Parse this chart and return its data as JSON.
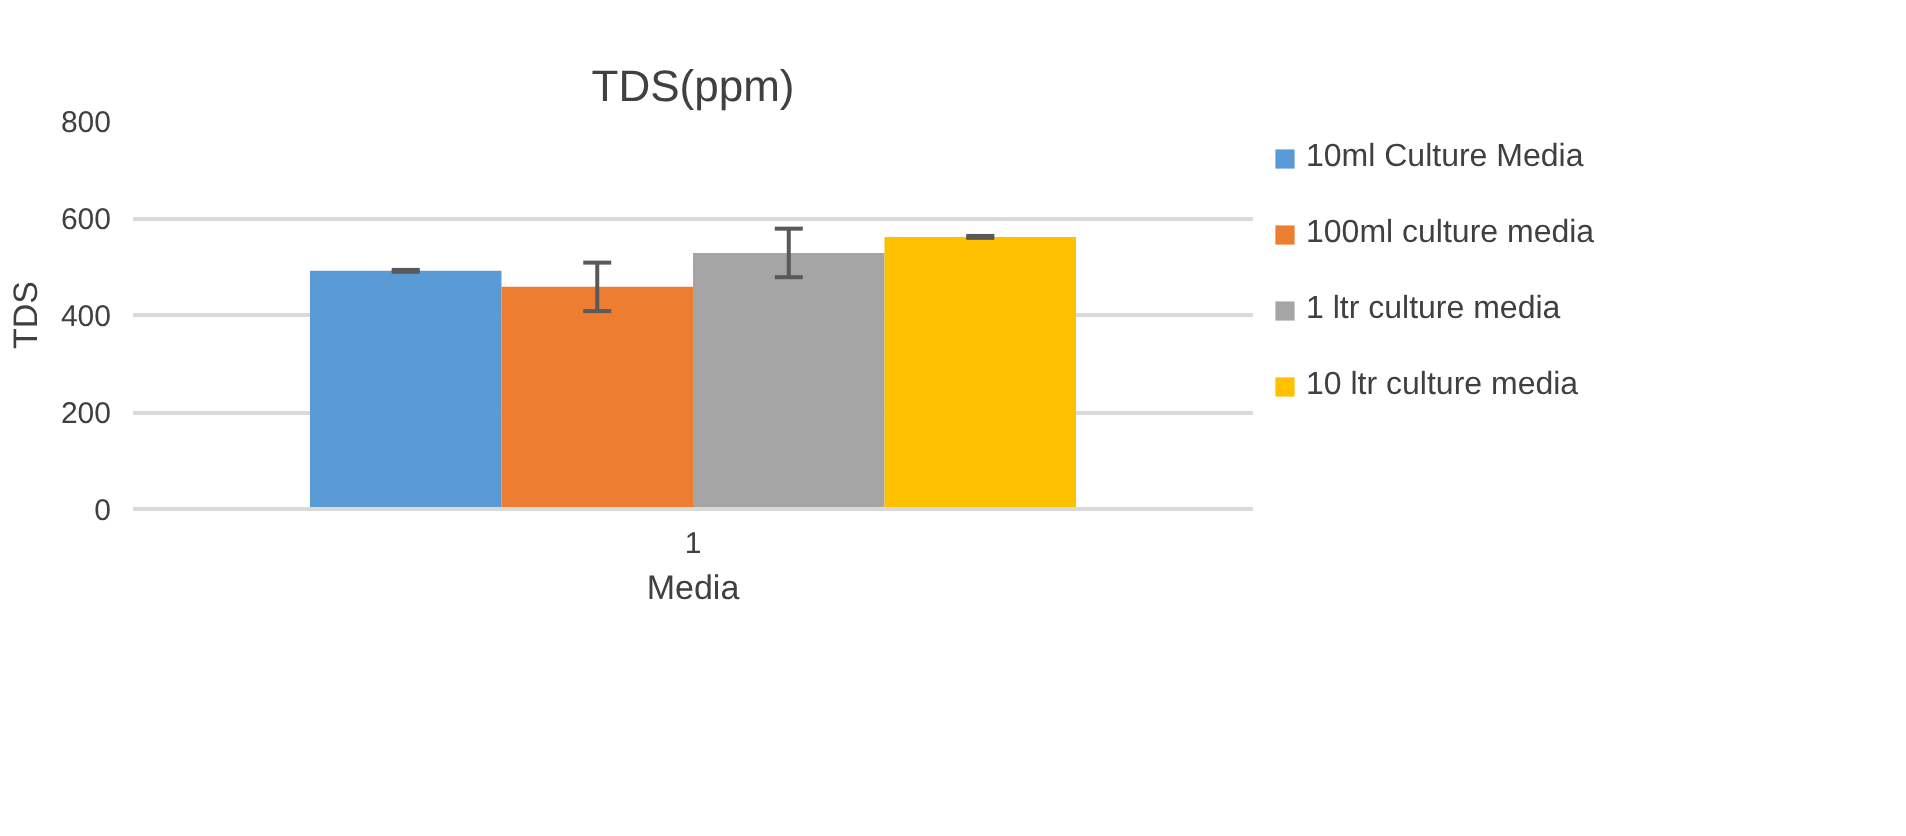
{
  "chart_data": {
    "type": "bar",
    "title": "TDS(ppm)",
    "xlabel": "Media",
    "ylabel": "TDS",
    "categories": [
      "1"
    ],
    "series": [
      {
        "name": "10ml Culture Media",
        "color": "#5b9bd5",
        "values": [
          491
        ],
        "errors": [
          2
        ]
      },
      {
        "name": "100ml culture media",
        "color": "#ed7d31",
        "values": [
          458
        ],
        "errors": [
          50
        ]
      },
      {
        "name": "1 ltr culture media",
        "color": "#a5a5a5",
        "values": [
          528
        ],
        "errors": [
          50
        ]
      },
      {
        "name": "10 ltr culture media",
        "color": "#ffc000",
        "values": [
          561
        ],
        "errors": [
          2
        ]
      }
    ],
    "ylim": [
      0,
      800
    ],
    "yticks": [
      0,
      200,
      400,
      600,
      800
    ],
    "grid": "y",
    "legend": "right"
  }
}
